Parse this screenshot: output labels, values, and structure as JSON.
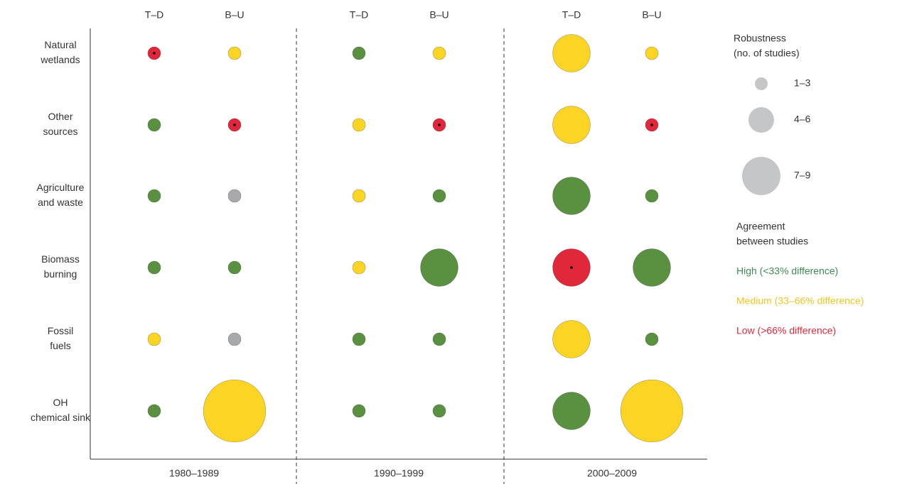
{
  "chart_data": {
    "type": "bubble",
    "rows": [
      [
        "Natural",
        "wetlands"
      ],
      [
        "Other",
        "sources"
      ],
      [
        "Agriculture",
        "and waste"
      ],
      [
        "Biomass",
        "burning"
      ],
      [
        "Fossil",
        "fuels"
      ],
      [
        "OH",
        "chemical sink"
      ]
    ],
    "periods": [
      "1980–1989",
      "1990–1999",
      "2000–2009"
    ],
    "methods": [
      "T–D",
      "B–U"
    ],
    "cells": [
      [
        {
          "studies": 2,
          "color": "#e0283a"
        },
        {
          "studies": 2,
          "color": "#fcd424"
        },
        {
          "studies": 2,
          "color": "#5a9140"
        },
        {
          "studies": 2,
          "color": "#fcd424"
        },
        {
          "studies": 5,
          "color": "#fcd424"
        },
        {
          "studies": 2,
          "color": "#fcd424"
        }
      ],
      [
        {
          "studies": 2,
          "color": "#5a9140"
        },
        {
          "studies": 2,
          "color": "#e0283a"
        },
        {
          "studies": 2,
          "color": "#fcd424"
        },
        {
          "studies": 2,
          "color": "#e0283a"
        },
        {
          "studies": 5,
          "color": "#fcd424"
        },
        {
          "studies": 2,
          "color": "#e0283a"
        }
      ],
      [
        {
          "studies": 2,
          "color": "#5a9140"
        },
        {
          "studies": 2,
          "color": "#a7a9ac"
        },
        {
          "studies": 2,
          "color": "#fcd424"
        },
        {
          "studies": 2,
          "color": "#5a9140"
        },
        {
          "studies": 5,
          "color": "#5a9140"
        },
        {
          "studies": 2,
          "color": "#5a9140"
        }
      ],
      [
        {
          "studies": 2,
          "color": "#5a9140"
        },
        {
          "studies": 2,
          "color": "#5a9140"
        },
        {
          "studies": 2,
          "color": "#fcd424"
        },
        {
          "studies": 5,
          "color": "#5a9140"
        },
        {
          "studies": 5,
          "color": "#e0283a"
        },
        {
          "studies": 5,
          "color": "#5a9140"
        }
      ],
      [
        {
          "studies": 2,
          "color": "#fcd424"
        },
        {
          "studies": 2,
          "color": "#a7a9ac"
        },
        {
          "studies": 2,
          "color": "#5a9140"
        },
        {
          "studies": 2,
          "color": "#5a9140"
        },
        {
          "studies": 5,
          "color": "#fcd424"
        },
        {
          "studies": 2,
          "color": "#5a9140"
        }
      ],
      [
        {
          "studies": 2,
          "color": "#5a9140"
        },
        {
          "studies": 8,
          "color": "#fcd424"
        },
        {
          "studies": 2,
          "color": "#5a9140"
        },
        {
          "studies": 2,
          "color": "#5a9140"
        },
        {
          "studies": 5,
          "color": "#5a9140"
        },
        {
          "studies": 8,
          "color": "#fcd424"
        }
      ]
    ],
    "size_legend_title": [
      "Robustness",
      "(no. of studies)"
    ],
    "size_legend": [
      {
        "value": 2,
        "label": "1–3"
      },
      {
        "value": 5,
        "label": "4–6"
      },
      {
        "value": 8,
        "label": "7–9"
      }
    ],
    "size_legend_color": "#c5c6c8",
    "color_legend_title": [
      "Agreement",
      "between studies"
    ],
    "color_legend": [
      {
        "label": "High (<33% difference)",
        "color": "#3f8a55"
      },
      {
        "label": "Medium (33–66% difference)",
        "color": "#f2c521"
      },
      {
        "label": "Low (>66% difference)",
        "color": "#e0283a"
      }
    ]
  }
}
